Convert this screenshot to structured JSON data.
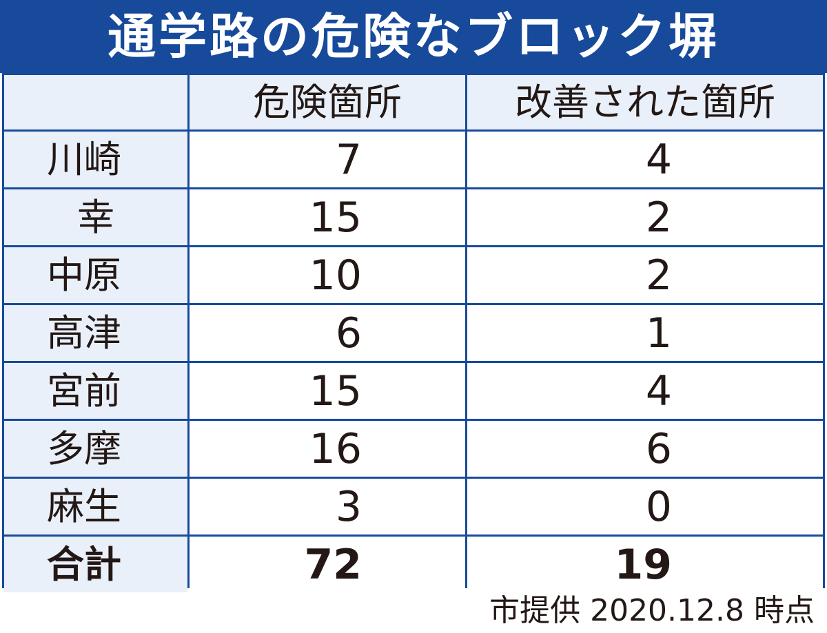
{
  "title": "通学路の危険なブロック塀",
  "colors": {
    "header_blue": "#174a9b",
    "label_bg": "#e9f0f9",
    "text": "#231815"
  },
  "chart_data": {
    "type": "table",
    "title": "通学路の危険なブロック塀",
    "columns": [
      "",
      "危険箇所",
      "改善された箇所"
    ],
    "rows": [
      {
        "label": "川崎",
        "values": [
          7,
          4
        ]
      },
      {
        "label": "幸",
        "values": [
          15,
          2
        ]
      },
      {
        "label": "中原",
        "values": [
          10,
          2
        ]
      },
      {
        "label": "高津",
        "values": [
          6,
          1
        ]
      },
      {
        "label": "宮前",
        "values": [
          15,
          4
        ]
      },
      {
        "label": "多摩",
        "values": [
          16,
          6
        ]
      },
      {
        "label": "麻生",
        "values": [
          3,
          0
        ]
      }
    ],
    "total": {
      "label": "合計",
      "values": [
        72,
        19
      ]
    },
    "source": "市提供 2020.12.8 時点"
  }
}
